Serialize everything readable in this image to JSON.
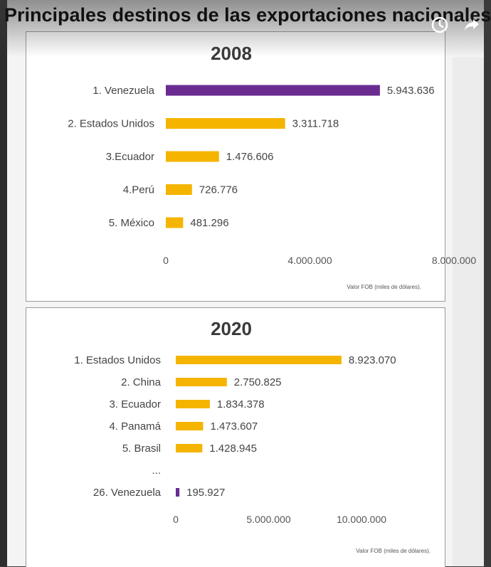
{
  "page_title": "Principales destinos de las exportaciones nacionales",
  "controls": {
    "watch_later_icon": "clock-icon",
    "share_icon": "share-arrow-icon"
  },
  "colors": {
    "highlight": "#6a2c91",
    "bar": "#f5b400",
    "text": "#333333",
    "border": "#9a9a9a"
  },
  "chart_data": [
    {
      "type": "bar",
      "orientation": "horizontal",
      "title": "2008",
      "categories": [
        "1. Venezuela",
        "2. Estados Unidos",
        "3.Ecuador",
        "4.Perú",
        "5. México"
      ],
      "values": [
        5943636,
        3311718,
        1476606,
        726776,
        481296
      ],
      "value_labels": [
        "5.943.636",
        "3.311.718",
        "1.476.606",
        "726.776",
        "481.296"
      ],
      "bar_colors": [
        "#6a2c91",
        "#f5b400",
        "#f5b400",
        "#f5b400",
        "#f5b400"
      ],
      "xlim": [
        0,
        8000000
      ],
      "xticks": [
        0,
        4000000,
        8000000
      ],
      "xtick_labels": [
        "0",
        "4.000.000",
        "8.000.000"
      ],
      "note": "Valor FOB (miles de dólares).",
      "grid": false,
      "legend": "none"
    },
    {
      "type": "bar",
      "orientation": "horizontal",
      "title": "2020",
      "categories": [
        "1. Estados Unidos",
        "2. China",
        "3. Ecuador",
        "4. Panamá",
        "5. Brasil",
        "...",
        "26. Venezuela"
      ],
      "values": [
        8923070,
        2750825,
        1834378,
        1473607,
        1428945,
        null,
        195927
      ],
      "value_labels": [
        "8.923.070",
        "2.750.825",
        "1.834.378",
        "1.473.607",
        "1.428.945",
        "",
        "195.927"
      ],
      "bar_colors": [
        "#f5b400",
        "#f5b400",
        "#f5b400",
        "#f5b400",
        "#f5b400",
        "#f5b400",
        "#6a2c91"
      ],
      "xlim": [
        0,
        10000000
      ],
      "xticks": [
        0,
        5000000,
        10000000
      ],
      "xtick_labels": [
        "0",
        "5.000.000",
        "10.000.000"
      ],
      "note": "Valor FOB (miles de dólares).",
      "grid": false,
      "legend": "none"
    }
  ]
}
